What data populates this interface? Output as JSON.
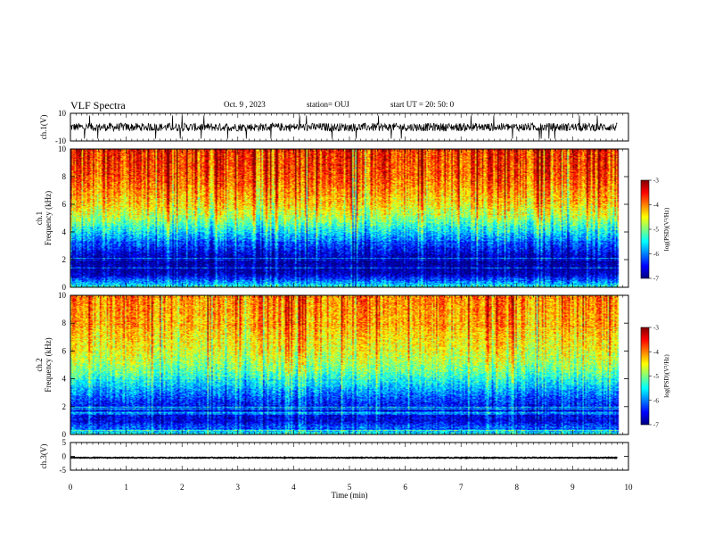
{
  "header": {
    "title": "VLF Spectra",
    "date": "Oct. 9 , 2023",
    "station": "station= OUJ",
    "start": "start UT = 20: 50: 0"
  },
  "colors": {
    "jet": [
      "#00007f",
      "#0000ff",
      "#007fff",
      "#00ffff",
      "#7fff7f",
      "#ffff00",
      "#ff7f00",
      "#ff0000",
      "#7f0000"
    ],
    "trace": "#000000",
    "axis": "#000000"
  },
  "chart_data": [
    {
      "type": "line",
      "name": "ch1-waveform",
      "ylabel": "ch.1(V)",
      "ylim": [
        -10,
        10
      ],
      "yticks": [
        "10",
        "-10"
      ],
      "x_range_min": [
        0,
        9.8
      ],
      "baseline_v": 0,
      "noise_amplitude_v": 3
    },
    {
      "type": "heatmap",
      "name": "ch1-spectrogram",
      "ylabel_line1": "ch.1",
      "ylabel_line2": "Frequency (kHz)",
      "ylim_khz": [
        0,
        10
      ],
      "yticks": [
        "0",
        "2",
        "4",
        "6",
        "8",
        "10"
      ],
      "x_range_min": [
        0,
        9.8
      ],
      "colorbar": {
        "label": "log(PSD)(V²/Hz)",
        "range": [
          -7,
          -3
        ],
        "ticks": [
          "-3",
          "-4",
          "-5",
          "-6",
          "-7"
        ]
      },
      "profile_khz": [
        [
          0,
          -5.2
        ],
        [
          0.3,
          -5.8
        ],
        [
          1.0,
          -6.8
        ],
        [
          2.0,
          -6.9
        ],
        [
          3.0,
          -6.3
        ],
        [
          4.0,
          -5.6
        ],
        [
          5.0,
          -4.9
        ],
        [
          6.0,
          -4.4
        ],
        [
          7.0,
          -4.1
        ],
        [
          8.0,
          -3.8
        ],
        [
          10.0,
          -3.6
        ]
      ],
      "hf_boost": 0.6
    },
    {
      "type": "heatmap",
      "name": "ch2-spectrogram",
      "ylabel_line1": "ch.2",
      "ylabel_line2": "Frequency (kHz)",
      "ylim_khz": [
        0,
        10
      ],
      "yticks": [
        "0",
        "2",
        "4",
        "6",
        "8",
        "10"
      ],
      "x_range_min": [
        0,
        9.8
      ],
      "colorbar": {
        "label": "log(PSD)(V²/Hz)",
        "range": [
          -7,
          -3
        ],
        "ticks": [
          "-3",
          "-4",
          "-5",
          "-6",
          "-7"
        ]
      },
      "profile_khz": [
        [
          0,
          -5.2
        ],
        [
          0.3,
          -5.9
        ],
        [
          1.0,
          -6.6
        ],
        [
          2.0,
          -6.5
        ],
        [
          3.0,
          -6.0
        ],
        [
          4.0,
          -5.4
        ],
        [
          5.0,
          -4.9
        ],
        [
          6.0,
          -4.6
        ],
        [
          7.0,
          -4.4
        ],
        [
          8.0,
          -4.2
        ],
        [
          10.0,
          -4.0
        ]
      ],
      "hf_boost": 0.4
    },
    {
      "type": "line",
      "name": "ch3-waveform",
      "ylabel": "ch.3(V)",
      "ylim": [
        -5,
        5
      ],
      "yticks": [
        "5",
        "0",
        "-5"
      ],
      "x_range_min": [
        0,
        9.8
      ],
      "baseline_v": -0.5,
      "noise_amplitude_v": 0.15
    }
  ],
  "xaxis": {
    "label": "Time (min)",
    "xlim": [
      0,
      10
    ],
    "ticks": [
      "0",
      "1",
      "2",
      "3",
      "4",
      "5",
      "6",
      "7",
      "8",
      "9",
      "10"
    ]
  }
}
